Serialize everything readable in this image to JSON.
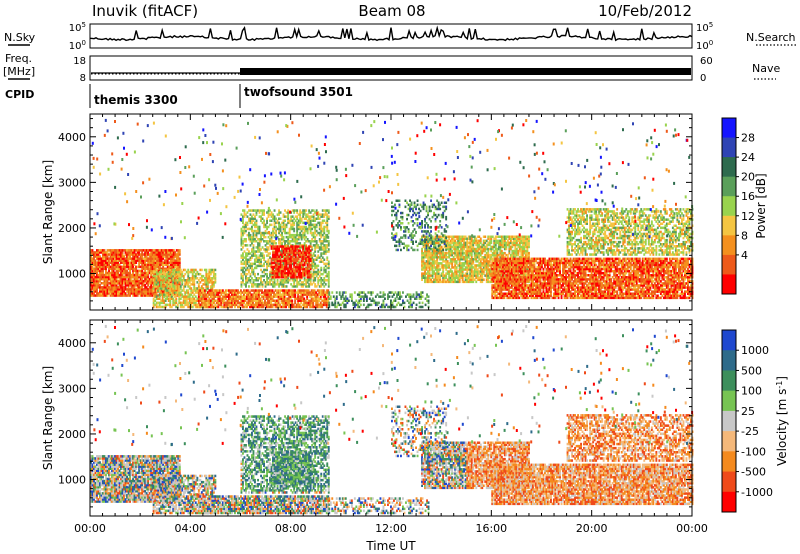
{
  "header": {
    "station": "Inuvik (fitACF)",
    "beam": "Beam 08",
    "date": "10/Feb/2012"
  },
  "left_labels": {
    "nsky": "N.Sky",
    "freq_line1": "Freq.",
    "freq_line2": "[MHz]",
    "cpid": "CPID"
  },
  "right_labels": {
    "nsearch": "N.Search",
    "nave": "Nave"
  },
  "noise_axis": {
    "left_ticks": [
      "10^5",
      "10^0"
    ],
    "right_ticks": [
      "10^5",
      "10^0"
    ]
  },
  "freq_axis": {
    "left_ticks": [
      "18",
      "8"
    ],
    "right_ticks": [
      "60",
      "0"
    ]
  },
  "cpid_modes": [
    {
      "label": "themis 3300",
      "start_hour": 0
    },
    {
      "label": "twofsound 3501",
      "start_hour": 6.0
    }
  ],
  "chart_data": [
    {
      "type": "heatmap",
      "name": "power",
      "xlabel": "",
      "ylabel": "Slant Range [km]",
      "xlim": [
        0,
        24
      ],
      "ylim": [
        200,
        4500
      ],
      "yticks": [
        "1000",
        "2000",
        "3000",
        "4000"
      ],
      "colorbar": {
        "label": "Power [dB]",
        "ticks": [
          "4",
          "8",
          "12",
          "16",
          "20",
          "24",
          "28"
        ],
        "colors": [
          "#1515ff",
          "#2f44b4",
          "#2e6b4e",
          "#5a9f5a",
          "#99d34e",
          "#f4c542",
          "#f4901e",
          "#ee5a1a",
          "#ff0000"
        ]
      }
    },
    {
      "type": "heatmap",
      "name": "velocity",
      "xlabel": "Time UT",
      "ylabel": "Slant Range [km]",
      "xlim": [
        0,
        24
      ],
      "ylim": [
        200,
        4500
      ],
      "xticks": [
        "00:00",
        "04:00",
        "08:00",
        "12:00",
        "16:00",
        "20:00",
        "00:00"
      ],
      "yticks": [
        "1000",
        "2000",
        "3000",
        "4000"
      ],
      "colorbar": {
        "label": "Velocity [m s",
        "label_sup": "-1",
        "label_end": "]",
        "ticks": [
          "1000",
          "500",
          "100",
          "25",
          "-25",
          "-100",
          "-500",
          "-1000"
        ],
        "colors": [
          "#1f48cf",
          "#2e6b8a",
          "#3d8f5c",
          "#77c453",
          "#c8c8c8",
          "#f4b87a",
          "#f48a1e",
          "#ef4a1a",
          "#ff0000"
        ]
      }
    }
  ]
}
